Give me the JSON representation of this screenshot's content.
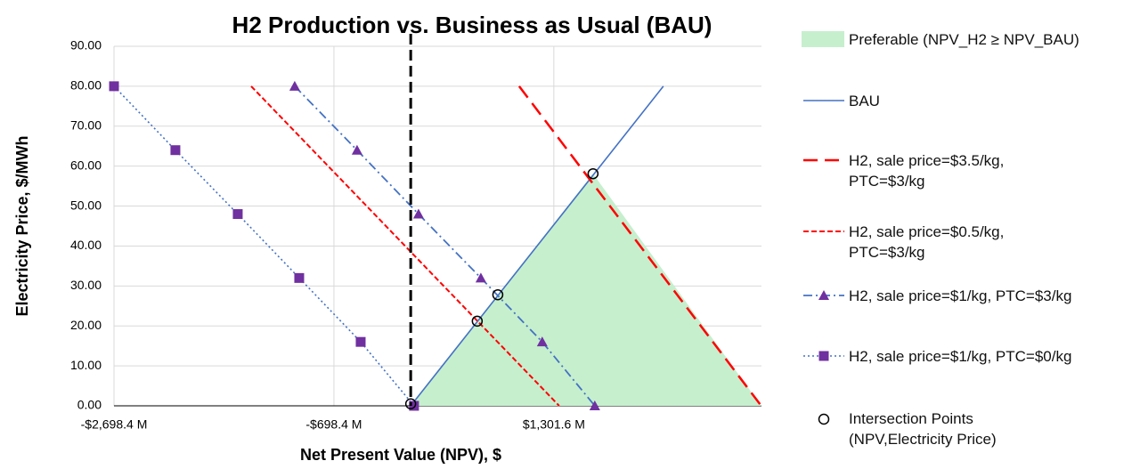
{
  "chart_data": {
    "type": "scatter",
    "title": "H2 Production vs. Business as Usual (BAU)",
    "x_label": "Net Present Value (NPV), $",
    "y_label": "Electricity Price, $/MWh",
    "xlim": [
      -2698.4,
      3190
    ],
    "ylim": [
      0,
      90
    ],
    "xticks": [
      {
        "value": -2698.4,
        "label": "-$2,698.4 M"
      },
      {
        "value": -698.4,
        "label": "-$698.4 M"
      },
      {
        "value": 1301.6,
        "label": "$1,301.6 M"
      }
    ],
    "yticks": [
      {
        "value": 0,
        "label": "0.00"
      },
      {
        "value": 10,
        "label": "10.00"
      },
      {
        "value": 20,
        "label": "20.00"
      },
      {
        "value": 30,
        "label": "30.00"
      },
      {
        "value": 40,
        "label": "40.00"
      },
      {
        "value": 50,
        "label": "50.00"
      },
      {
        "value": 60,
        "label": "60.00"
      },
      {
        "value": 70,
        "label": "70.00"
      },
      {
        "value": 80,
        "label": "80.00"
      },
      {
        "value": 90,
        "label": "90.00"
      }
    ],
    "grid": true,
    "vertical_line_x": 0,
    "legend": "right",
    "series": [
      {
        "name": "Preferable (NPV_H2 ≥ NPV_BAU)",
        "style": "area",
        "color": "#c6efce",
        "x": [
          0,
          1658,
          3188
        ],
        "values": [
          0,
          58.1,
          0
        ]
      },
      {
        "name": "BAU",
        "style": "line",
        "color": "#4472c4",
        "dash": "solid",
        "x": [
          0,
          2297.6
        ],
        "values": [
          0,
          80
        ]
      },
      {
        "name": "H2, sale price=$3.5/kg, PTC=$3/kg",
        "style": "line",
        "color": "#ff0000",
        "dash": "long-dash",
        "x": [
          986,
          3188
        ],
        "values": [
          80,
          0
        ]
      },
      {
        "name": "H2, sale price=$0.5/kg, PTC=$3/kg",
        "style": "line",
        "color": "#ff0000",
        "dash": "dash",
        "x": [
          -1451,
          1350
        ],
        "values": [
          80,
          0
        ]
      },
      {
        "name": "H2, sale price=$1/kg, PTC=$3/kg",
        "style": "line",
        "color": "#4472c4",
        "dash": "dash-dot",
        "marker": "triangle",
        "marker_color": "#7030a0",
        "x": [
          -1055,
          -488,
          71,
          638,
          1196,
          1674
        ],
        "values": [
          80,
          64,
          48,
          32,
          16,
          0
        ]
      },
      {
        "name": "H2, sale price=$1/kg, PTC=$0/kg",
        "style": "line",
        "color": "#4472c4",
        "dash": "dot",
        "marker": "square",
        "marker_color": "#7030a0",
        "x": [
          -2698.4,
          -2140,
          -1573,
          -1014,
          -455,
          30
        ],
        "values": [
          80,
          64,
          48,
          32,
          16,
          0
        ]
      },
      {
        "name": "Intersection Points (NPV,Electricity Price)",
        "style": "markers",
        "color": "#000000",
        "marker": "circle",
        "x": [
          0,
          605,
          792,
          1658
        ],
        "values": [
          0.5,
          21.2,
          27.8,
          58.1
        ]
      }
    ]
  }
}
